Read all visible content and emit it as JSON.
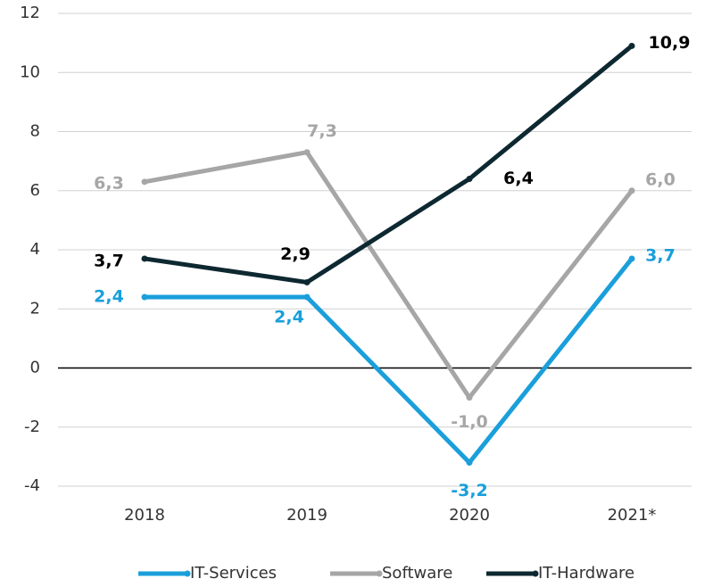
{
  "chart_data": {
    "type": "line",
    "categories": [
      "2018",
      "2019",
      "2020",
      "2021*"
    ],
    "series": [
      {
        "name": "IT-Services",
        "color": "#1a9fdb",
        "values": [
          2.4,
          2.4,
          -3.2,
          3.7
        ],
        "value_labels": [
          "2,4",
          "2,4",
          "-3,2",
          "3,7"
        ]
      },
      {
        "name": "Software",
        "color": "#a6a6a6",
        "values": [
          6.3,
          7.3,
          -1.0,
          6.0
        ],
        "value_labels": [
          "6,3",
          "7,3",
          "-1,0",
          "6,0"
        ]
      },
      {
        "name": "IT-Hardware",
        "color": "#0d2830",
        "values": [
          3.7,
          2.9,
          6.4,
          10.9
        ],
        "value_labels": [
          "3,7",
          "2,9",
          "6,4",
          "10,9"
        ]
      }
    ],
    "ylim": [
      -4,
      12
    ],
    "yticks": [
      -4,
      -2,
      0,
      2,
      4,
      6,
      8,
      10,
      12
    ],
    "grid": true,
    "legend": "bottom"
  }
}
